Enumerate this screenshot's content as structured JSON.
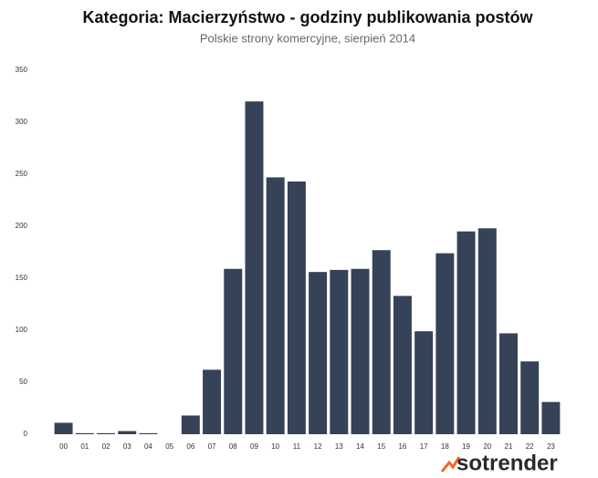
{
  "chart_data": {
    "type": "bar",
    "title": "Kategoria: Macierzyństwo - godziny publikowania postów",
    "subtitle": "Polskie strony komercyjne, sierpień 2014",
    "categories": [
      "00",
      "01",
      "02",
      "03",
      "04",
      "05",
      "06",
      "07",
      "08",
      "09",
      "10",
      "11",
      "12",
      "13",
      "14",
      "15",
      "16",
      "17",
      "18",
      "19",
      "20",
      "21",
      "22",
      "23"
    ],
    "values": [
      11,
      1,
      1,
      3,
      1,
      0,
      18,
      62,
      159,
      320,
      247,
      243,
      156,
      158,
      159,
      177,
      133,
      99,
      174,
      195,
      198,
      97,
      70,
      31
    ],
    "color": "#354257",
    "ylim": [
      0,
      350
    ],
    "yticks": [
      0,
      50,
      100,
      150,
      200,
      250,
      300,
      350
    ],
    "grid": false,
    "logo": "sotrender"
  }
}
